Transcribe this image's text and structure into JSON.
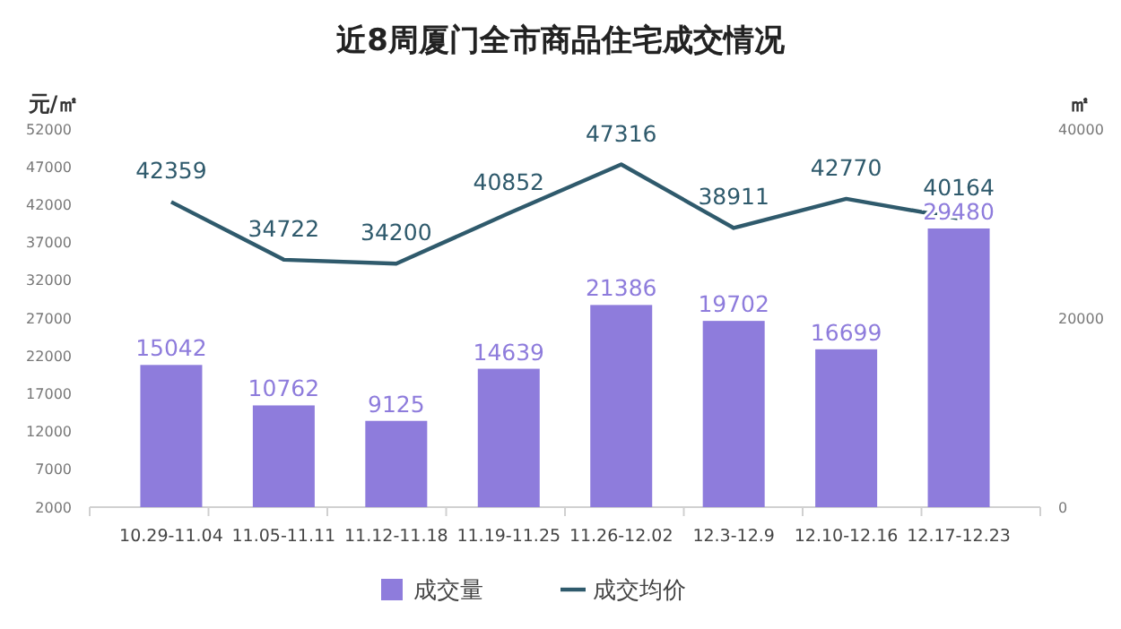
{
  "chart_data": {
    "type": "bar",
    "title": "近8周厦门全市商品住宅成交情况",
    "ylabel": "元/㎡",
    "y2label": "㎡",
    "categories": [
      "10.29-11.04",
      "11.05-11.11",
      "11.12-11.18",
      "11.19-11.25",
      "11.26-12.02",
      "12.3-12.9",
      "12.10-12.16",
      "12.17-12.23"
    ],
    "series": [
      {
        "name": "成交量",
        "axis": "y2",
        "color": "#8e7cdc",
        "values": [
          15042,
          10762,
          9125,
          14639,
          21386,
          19702,
          16699,
          29480
        ]
      },
      {
        "name": "成交均价",
        "type": "line",
        "color": "#2f5a6c",
        "values": [
          42359,
          34722,
          34200,
          40852,
          47316,
          38911,
          42770,
          40164
        ]
      }
    ],
    "ylim": [
      2000,
      52000
    ],
    "yticks": [
      2000,
      7000,
      12000,
      17000,
      22000,
      27000,
      32000,
      37000,
      42000,
      47000,
      52000
    ],
    "y2lim": [
      0,
      40000
    ],
    "y2ticks": [
      0,
      20000,
      40000
    ],
    "data_labels": true,
    "legend": "bottom",
    "grid": false,
    "marker": "none"
  }
}
